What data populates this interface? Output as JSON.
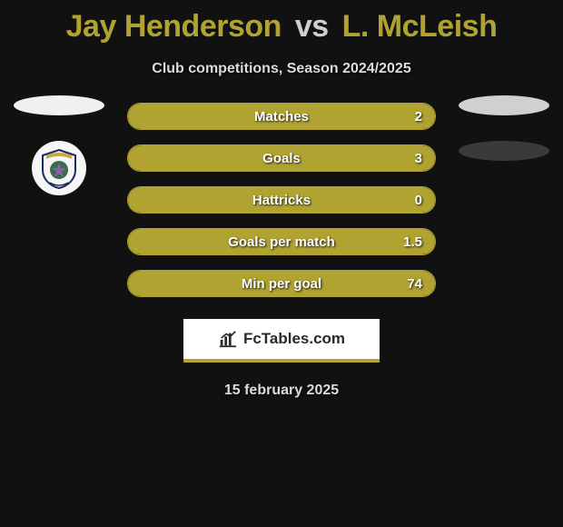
{
  "title": {
    "player1": "Jay Henderson",
    "vs": "vs",
    "player2": "L. McLeish"
  },
  "subtitle": "Club competitions, Season 2024/2025",
  "date": "15 february 2025",
  "colors": {
    "accent": "#b0a332",
    "bar_empty": "#111111",
    "left_ellipse": "#f0f0f0",
    "right_ellipse_top": "#d0d0d0",
    "right_ellipse_bottom": "#3a3a3a",
    "background": "#111111",
    "text_light": "#dcdcdc"
  },
  "bars": {
    "fill_side": "left",
    "fill_fraction": 1.0,
    "rows": [
      {
        "label": "Matches",
        "value": "2"
      },
      {
        "label": "Goals",
        "value": "3"
      },
      {
        "label": "Hattricks",
        "value": "0"
      },
      {
        "label": "Goals per match",
        "value": "1.5"
      },
      {
        "label": "Min per goal",
        "value": "74"
      }
    ]
  },
  "logo": {
    "text": "FcTables.com"
  },
  "crest": {
    "name": "inverness-crest-icon"
  }
}
